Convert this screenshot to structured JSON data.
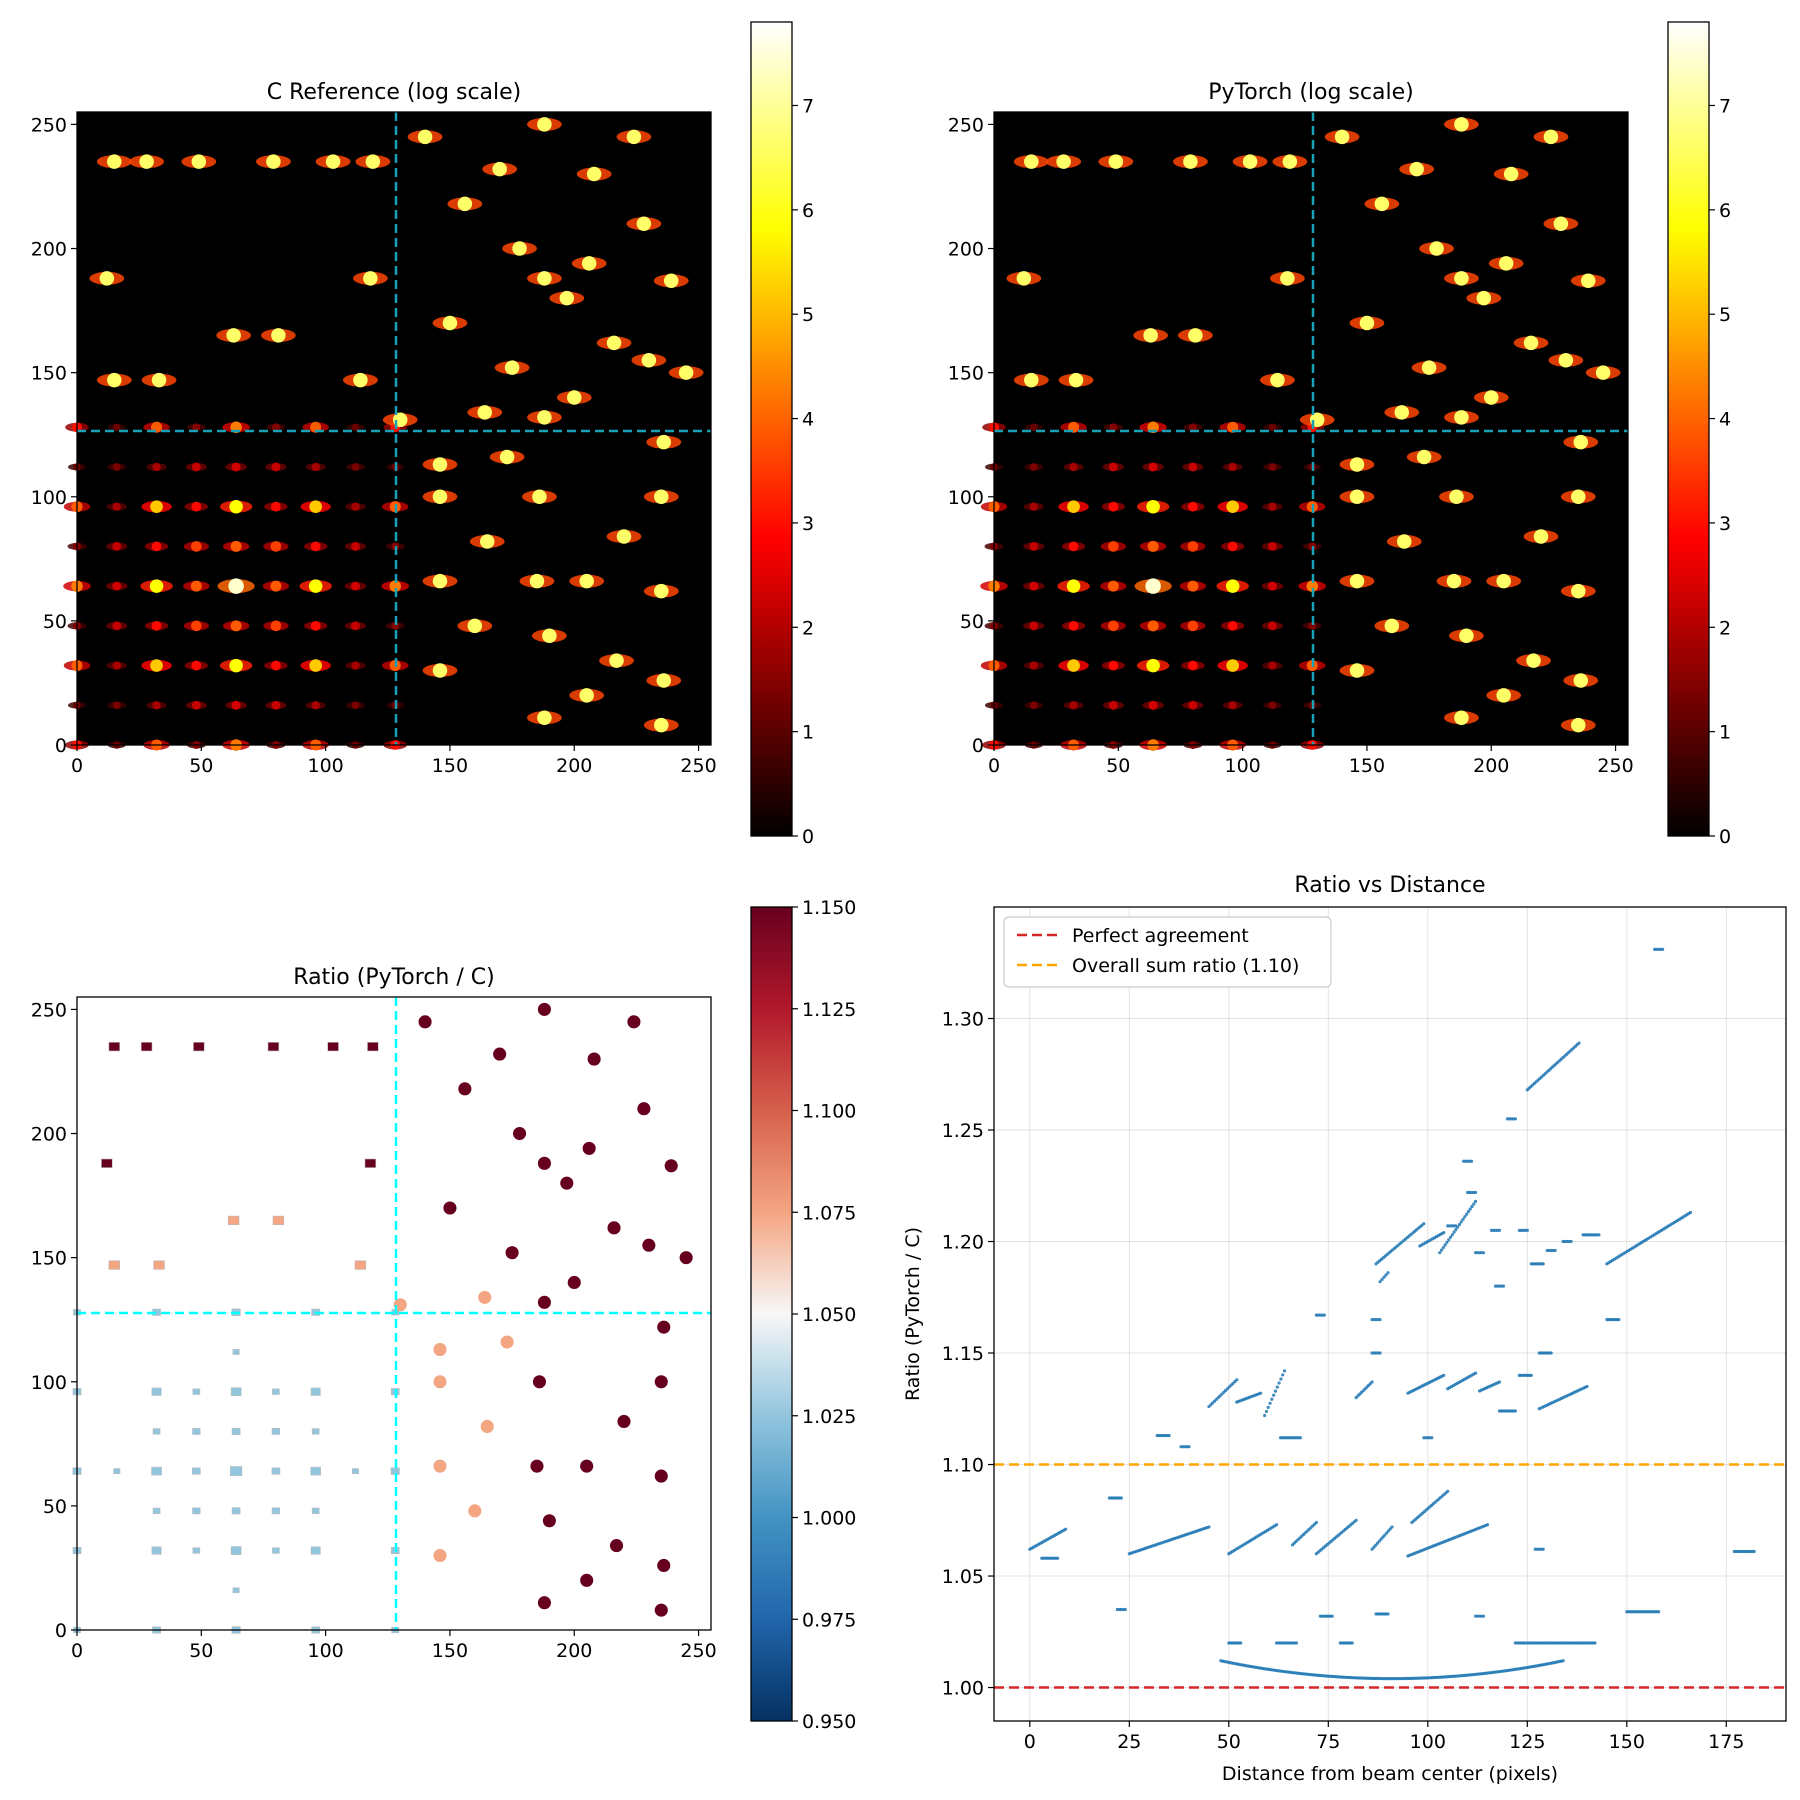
{
  "chart_data": [
    {
      "type": "heatmap",
      "title": "C Reference (log scale)",
      "xlim": [
        0,
        255
      ],
      "ylim": [
        0,
        255
      ],
      "xticks": [
        "0",
        "50",
        "100",
        "150",
        "200",
        "250"
      ],
      "yticks": [
        "0",
        "50",
        "100",
        "150",
        "200",
        "250"
      ],
      "colormap": "hot",
      "colorbar": {
        "min": 0,
        "max": 7.8,
        "ticks": [
          "0",
          "1",
          "2",
          "3",
          "4",
          "5",
          "6",
          "7"
        ]
      },
      "beam_center_lines": {
        "x": 128,
        "y": 128,
        "color": "#17a2b8",
        "style": "dashed"
      }
    },
    {
      "type": "heatmap",
      "title": "PyTorch (log scale)",
      "xlim": [
        0,
        255
      ],
      "ylim": [
        0,
        255
      ],
      "xticks": [
        "0",
        "50",
        "100",
        "150",
        "200",
        "250"
      ],
      "yticks": [
        "0",
        "50",
        "100",
        "150",
        "200",
        "250"
      ],
      "colormap": "hot",
      "colorbar": {
        "min": 0,
        "max": 7.8,
        "ticks": [
          "0",
          "1",
          "2",
          "3",
          "4",
          "5",
          "6",
          "7"
        ]
      },
      "beam_center_lines": {
        "x": 128,
        "y": 128,
        "color": "#17a2b8",
        "style": "dashed"
      }
    },
    {
      "type": "heatmap",
      "title": "Ratio (PyTorch / C)",
      "xlim": [
        0,
        255
      ],
      "ylim": [
        0,
        255
      ],
      "xticks": [
        "0",
        "50",
        "100",
        "150",
        "200",
        "250"
      ],
      "yticks": [
        "0",
        "50",
        "100",
        "150",
        "200",
        "250"
      ],
      "colormap": "RdBu_r",
      "colorbar": {
        "min": 0.95,
        "max": 1.15,
        "ticks": [
          "0.950",
          "0.975",
          "1.000",
          "1.025",
          "1.050",
          "1.075",
          "1.100",
          "1.125",
          "1.150"
        ]
      },
      "beam_center_lines": {
        "x": 128,
        "y": 128,
        "color": "#00ffff",
        "style": "dashed"
      }
    },
    {
      "type": "scatter",
      "title": "Ratio vs Distance",
      "xlabel": "Distance from beam center (pixels)",
      "ylabel": "Ratio (PyTorch / C)",
      "xlim": [
        -9,
        190
      ],
      "ylim": [
        0.985,
        1.35
      ],
      "xticks": [
        "0",
        "25",
        "50",
        "75",
        "100",
        "125",
        "150",
        "175"
      ],
      "yticks": [
        "1.00",
        "1.05",
        "1.10",
        "1.15",
        "1.20",
        "1.25",
        "1.30"
      ],
      "grid": true,
      "legend_position": "top-left",
      "point_color": "#1f77b4",
      "reference_lines": [
        {
          "name": "Perfect agreement",
          "y": 1.0,
          "color": "#d62728",
          "style": "dashed"
        },
        {
          "name": "Overall sum ratio (1.10)",
          "y": 1.1,
          "color": "#ffa500",
          "style": "dashed"
        }
      ],
      "clusters": [
        {
          "x0": 48,
          "x1": 134,
          "y": 1.004,
          "shape": "arc",
          "y_end": 1.012
        },
        {
          "x0": 22,
          "x1": 24,
          "y": 1.035
        },
        {
          "x0": 50,
          "x1": 53,
          "y": 1.02
        },
        {
          "x0": 62,
          "x1": 67,
          "y": 1.02
        },
        {
          "x0": 73,
          "x1": 76,
          "y": 1.032
        },
        {
          "x0": 78,
          "x1": 81,
          "y": 1.02
        },
        {
          "x0": 87,
          "x1": 90,
          "y": 1.033
        },
        {
          "x0": 112,
          "x1": 114,
          "y": 1.032
        },
        {
          "x0": 122,
          "x1": 142,
          "y": 1.02
        },
        {
          "x0": 150,
          "x1": 158,
          "y": 1.034
        },
        {
          "x0": 0,
          "x1": 9,
          "y": 1.062,
          "y_end": 1.071
        },
        {
          "x0": 3,
          "x1": 7,
          "y": 1.058
        },
        {
          "x0": 20,
          "x1": 23,
          "y": 1.085
        },
        {
          "x0": 25,
          "x1": 45,
          "y": 1.06,
          "y_end": 1.072
        },
        {
          "x0": 50,
          "x1": 62,
          "y": 1.06,
          "y_end": 1.073
        },
        {
          "x0": 66,
          "x1": 72,
          "y": 1.064,
          "y_end": 1.074
        },
        {
          "x0": 72,
          "x1": 82,
          "y": 1.06,
          "y_end": 1.075
        },
        {
          "x0": 86,
          "x1": 91,
          "y": 1.062,
          "y_end": 1.072
        },
        {
          "x0": 96,
          "x1": 105,
          "y": 1.074,
          "y_end": 1.088
        },
        {
          "x0": 95,
          "x1": 115,
          "y": 1.059,
          "y_end": 1.073
        },
        {
          "x0": 127,
          "x1": 129,
          "y": 1.062
        },
        {
          "x0": 177,
          "x1": 182,
          "y": 1.061
        },
        {
          "x0": 32,
          "x1": 35,
          "y": 1.113
        },
        {
          "x0": 38,
          "x1": 40,
          "y": 1.108
        },
        {
          "x0": 45,
          "x1": 52,
          "y": 1.126,
          "y_end": 1.138
        },
        {
          "x0": 52,
          "x1": 58,
          "y": 1.128,
          "y_end": 1.132
        },
        {
          "x0": 59,
          "x1": 64,
          "y": 1.122,
          "y_end": 1.142
        },
        {
          "x0": 63,
          "x1": 68,
          "y": 1.112
        },
        {
          "x0": 72,
          "x1": 74,
          "y": 1.167
        },
        {
          "x0": 82,
          "x1": 86,
          "y": 1.13,
          "y_end": 1.137
        },
        {
          "x0": 86,
          "x1": 88,
          "y": 1.165
        },
        {
          "x0": 86,
          "x1": 88,
          "y": 1.15
        },
        {
          "x0": 88,
          "x1": 90,
          "y": 1.182,
          "y_end": 1.186
        },
        {
          "x0": 95,
          "x1": 104,
          "y": 1.132,
          "y_end": 1.14
        },
        {
          "x0": 99,
          "x1": 101,
          "y": 1.112
        },
        {
          "x0": 105,
          "x1": 112,
          "y": 1.134,
          "y_end": 1.141
        },
        {
          "x0": 113,
          "x1": 118,
          "y": 1.133,
          "y_end": 1.137
        },
        {
          "x0": 118,
          "x1": 122,
          "y": 1.124
        },
        {
          "x0": 123,
          "x1": 126,
          "y": 1.14
        },
        {
          "x0": 128,
          "x1": 131,
          "y": 1.15
        },
        {
          "x0": 128,
          "x1": 140,
          "y": 1.125,
          "y_end": 1.135
        },
        {
          "x0": 145,
          "x1": 148,
          "y": 1.165
        },
        {
          "x0": 87,
          "x1": 99,
          "y": 1.19,
          "y_end": 1.208
        },
        {
          "x0": 98,
          "x1": 104,
          "y": 1.198,
          "y_end": 1.204
        },
        {
          "x0": 105,
          "x1": 107,
          "y": 1.207
        },
        {
          "x0": 103,
          "x1": 112,
          "y": 1.195,
          "y_end": 1.218
        },
        {
          "x0": 112,
          "x1": 114,
          "y": 1.195
        },
        {
          "x0": 109,
          "x1": 111,
          "y": 1.236
        },
        {
          "x0": 110,
          "x1": 112,
          "y": 1.222
        },
        {
          "x0": 116,
          "x1": 118,
          "y": 1.205
        },
        {
          "x0": 117,
          "x1": 119,
          "y": 1.18
        },
        {
          "x0": 123,
          "x1": 125,
          "y": 1.205
        },
        {
          "x0": 126,
          "x1": 129,
          "y": 1.19
        },
        {
          "x0": 130,
          "x1": 132,
          "y": 1.196
        },
        {
          "x0": 134,
          "x1": 136,
          "y": 1.2
        },
        {
          "x0": 139,
          "x1": 143,
          "y": 1.203
        },
        {
          "x0": 145,
          "x1": 166,
          "y": 1.19,
          "y_end": 1.213
        },
        {
          "x0": 120,
          "x1": 122,
          "y": 1.255
        },
        {
          "x0": 125,
          "x1": 138,
          "y": 1.268,
          "y_end": 1.289
        },
        {
          "x0": 157,
          "x1": 159,
          "y": 1.331
        }
      ]
    }
  ]
}
